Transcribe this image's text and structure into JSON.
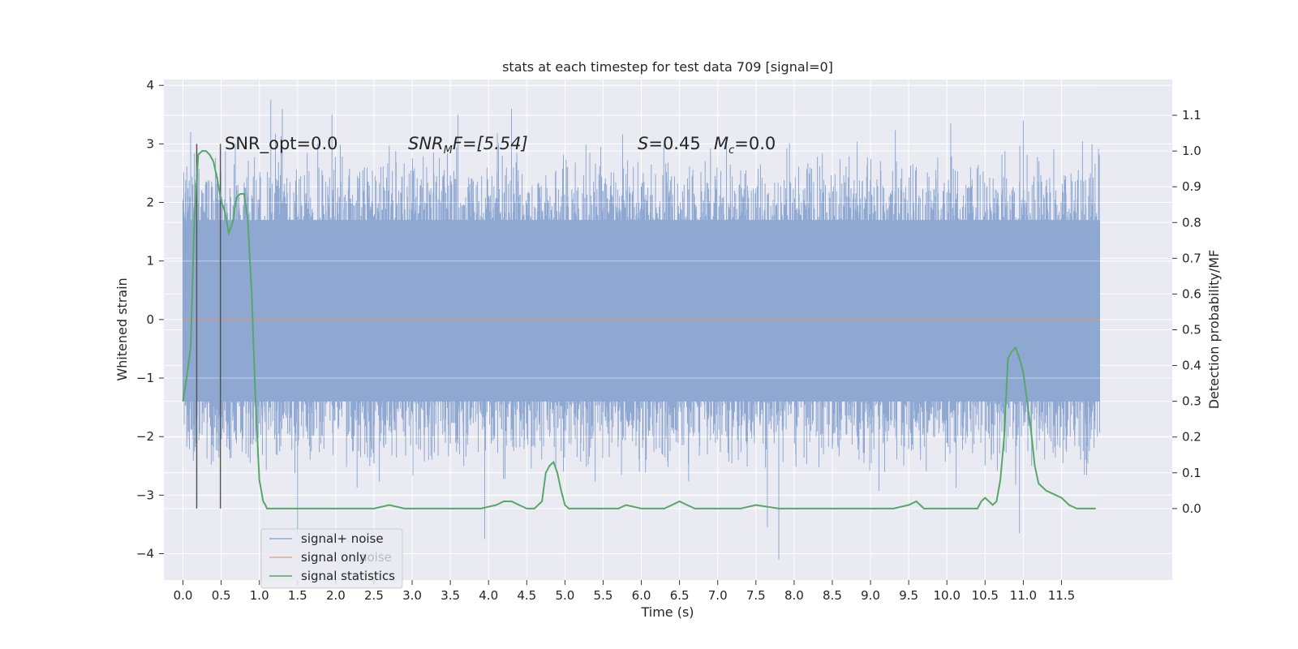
{
  "chart_data": {
    "type": "line",
    "title": "stats at each timestep for test data 709 [signal=0]",
    "xlabel": "Time (s)",
    "ylabel": "Whitened strain",
    "ylabel_right": "Detection probability/MF",
    "xlim": [
      -0.25,
      12.95
    ],
    "ylim": [
      -4.45,
      4.1
    ],
    "ylim_right": [
      -0.2,
      1.2
    ],
    "x_ticks": [
      "0.0",
      "0.5",
      "1.0",
      "1.5",
      "2.0",
      "2.5",
      "3.0",
      "3.5",
      "4.0",
      "4.5",
      "5.0",
      "5.5",
      "6.0",
      "6.5",
      "7.0",
      "7.5",
      "8.0",
      "8.5",
      "9.0",
      "9.5",
      "10.0",
      "10.5",
      "11.0",
      "11.5"
    ],
    "y_ticks": [
      "4",
      "3",
      "2",
      "1",
      "0",
      "−1",
      "−2",
      "−3",
      "−4"
    ],
    "y_ticks_right": [
      "1.1",
      "1.0",
      "0.9",
      "0.8",
      "0.7",
      "0.6",
      "0.5",
      "0.4",
      "0.3",
      "0.2",
      "0.1",
      "0.0"
    ],
    "grid": true,
    "legend_position": "lower-left",
    "legend": [
      "signal+ noise",
      "signal only",
      "signal statistics"
    ],
    "legend_hidden_text": "noise",
    "annotations": {
      "snr_opt": "SNR_opt=0.0",
      "snr_mf_main": "SNR",
      "snr_mf_sub": "M",
      "snr_mf_rest": "F=[5.54]",
      "s_main": "S",
      "s_rest": "=0.45",
      "mc_main": "M",
      "mc_sub": "c",
      "mc_rest": "=0.0"
    },
    "vertical_markers_x": [
      0.18,
      0.49
    ],
    "colors": {
      "signal_noise": "#8fa8d2",
      "signal_only": "#dd8452",
      "signal_statistics": "#55a868",
      "background": "#eaeaf2",
      "grid": "#ffffff",
      "marker": "#555555"
    },
    "series": [
      {
        "name": "signal+ noise",
        "axis": "left",
        "description_range": [
          0.0,
          12.0
        ],
        "typical_band": [
          -1.4,
          1.7
        ],
        "peaks": [
          [
            0.1,
            3.2
          ],
          [
            1.15,
            3.75
          ],
          [
            1.3,
            3.6
          ],
          [
            1.95,
            3.5
          ],
          [
            3.6,
            3.5
          ],
          [
            4.3,
            3.6
          ],
          [
            10.05,
            3.35
          ],
          [
            11.0,
            3.4
          ],
          [
            11.9,
            3.0
          ]
        ],
        "troughs": [
          [
            1.5,
            -3.7
          ],
          [
            3.95,
            -3.75
          ],
          [
            7.65,
            -3.55
          ],
          [
            7.8,
            -4.1
          ],
          [
            10.95,
            -3.65
          ],
          [
            11.8,
            -2.65
          ]
        ]
      },
      {
        "name": "signal only",
        "axis": "left",
        "x": [
          0.0,
          12.0
        ],
        "values": [
          0.0,
          0.0
        ]
      },
      {
        "name": "signal statistics",
        "axis": "right",
        "x": [
          0.0,
          0.05,
          0.1,
          0.15,
          0.2,
          0.25,
          0.3,
          0.35,
          0.4,
          0.45,
          0.5,
          0.55,
          0.6,
          0.65,
          0.7,
          0.75,
          0.8,
          0.85,
          0.9,
          0.95,
          1.0,
          1.05,
          1.08,
          1.1,
          1.15,
          1.2,
          1.5,
          1.8,
          2.0,
          2.5,
          2.7,
          2.9,
          3.5,
          3.9,
          4.1,
          4.2,
          4.3,
          4.4,
          4.5,
          4.6,
          4.7,
          4.75,
          4.8,
          4.85,
          4.9,
          4.95,
          5.0,
          5.05,
          5.1,
          5.2,
          5.5,
          5.7,
          5.8,
          6.0,
          6.3,
          6.4,
          6.5,
          6.6,
          6.7,
          6.8,
          7.0,
          7.3,
          7.5,
          7.8,
          8.0,
          8.5,
          8.7,
          8.9,
          9.3,
          9.5,
          9.6,
          9.7,
          9.8,
          10.0,
          10.3,
          10.4,
          10.45,
          10.5,
          10.55,
          10.6,
          10.65,
          10.7,
          10.75,
          10.8,
          10.85,
          10.9,
          10.95,
          11.0,
          11.05,
          11.1,
          11.15,
          11.2,
          11.3,
          11.4,
          11.5,
          11.6,
          11.7,
          11.8,
          11.9,
          11.95
        ],
        "values": [
          0.3,
          0.37,
          0.45,
          0.82,
          0.99,
          1.0,
          1.0,
          0.99,
          0.97,
          0.92,
          0.86,
          0.83,
          0.77,
          0.8,
          0.87,
          0.88,
          0.88,
          0.8,
          0.6,
          0.3,
          0.08,
          0.02,
          0.01,
          0.0,
          0.0,
          0.0,
          0.0,
          0.0,
          0.0,
          0.0,
          0.01,
          0.0,
          0.0,
          0.0,
          0.01,
          0.02,
          0.02,
          0.01,
          0.0,
          0.0,
          0.02,
          0.1,
          0.12,
          0.13,
          0.1,
          0.05,
          0.01,
          0.0,
          0.0,
          0.0,
          0.0,
          0.0,
          0.01,
          0.0,
          0.0,
          0.01,
          0.02,
          0.01,
          0.0,
          0.0,
          0.0,
          0.0,
          0.01,
          0.0,
          0.0,
          0.0,
          0.0,
          0.0,
          0.0,
          0.01,
          0.02,
          0.0,
          0.0,
          0.0,
          0.0,
          0.0,
          0.02,
          0.03,
          0.02,
          0.01,
          0.02,
          0.08,
          0.2,
          0.42,
          0.44,
          0.45,
          0.42,
          0.38,
          0.3,
          0.22,
          0.12,
          0.07,
          0.05,
          0.04,
          0.03,
          0.01,
          0.0,
          0.0,
          0.0,
          0.0
        ]
      }
    ]
  }
}
